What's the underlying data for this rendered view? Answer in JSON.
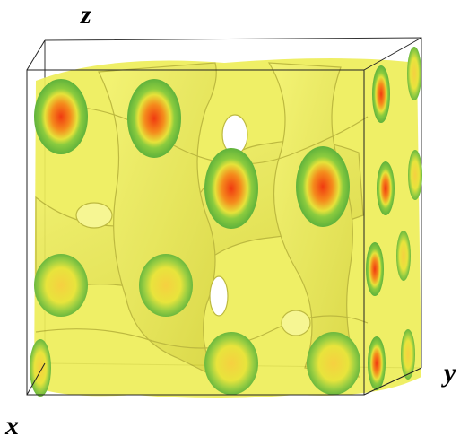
{
  "axes": {
    "z": "z",
    "y": "y",
    "x": "x"
  }
}
